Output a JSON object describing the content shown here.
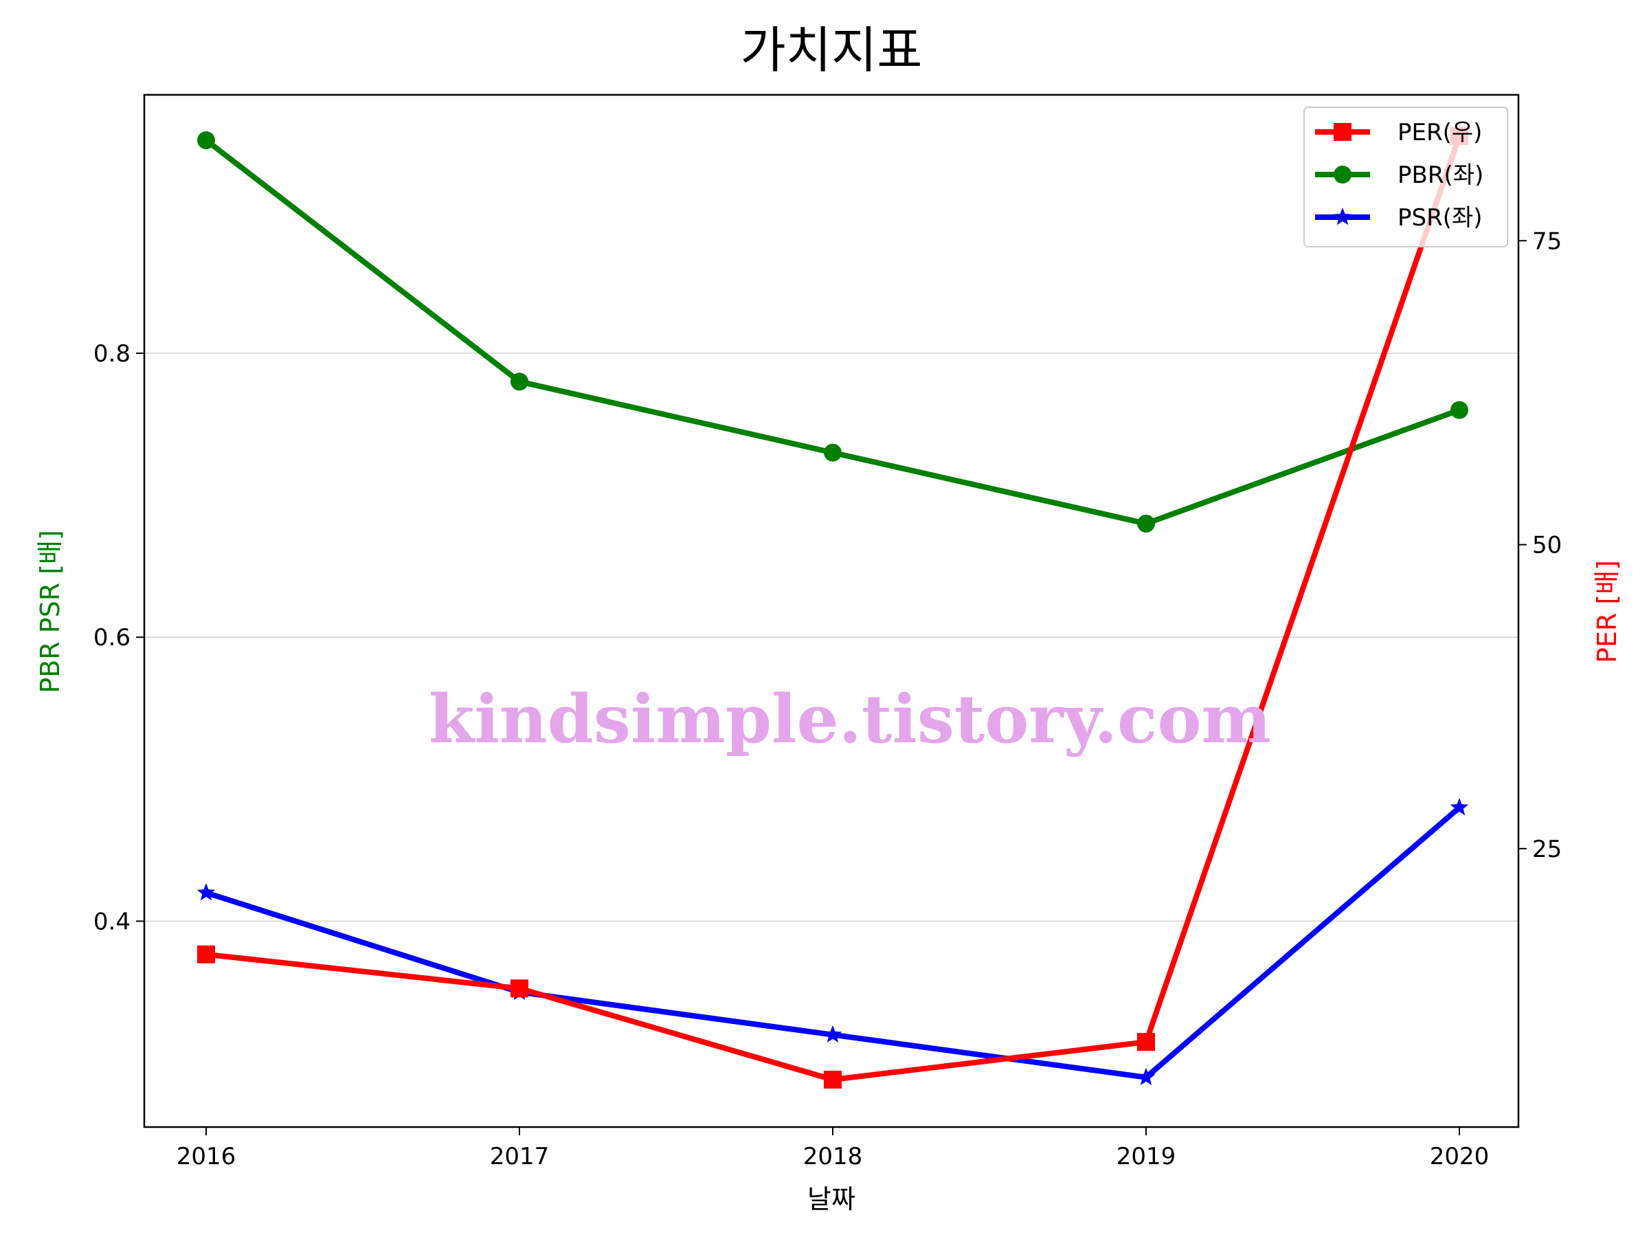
{
  "chart_data": {
    "type": "line",
    "title": "가치지표",
    "xlabel": "날짜",
    "ylabel_left": "PBR PSR [배]",
    "ylabel_right": "PER [배]",
    "categories": [
      "2016",
      "2017",
      "2018",
      "2019",
      "2020"
    ],
    "left_axis": {
      "ylim": [
        0.255,
        0.982
      ],
      "ticks": [
        "0.4",
        "0.6",
        "0.8"
      ],
      "tick_values": [
        0.4,
        0.6,
        0.8
      ]
    },
    "right_axis": {
      "ylim": [
        2.1,
        87.0
      ],
      "ticks": [
        "25",
        "50",
        "75"
      ],
      "tick_values": [
        25,
        50,
        75
      ]
    },
    "grid": "horizontal (left axis)",
    "legend_position": "top-right",
    "series": [
      {
        "name": "PER(우)",
        "axis": "right",
        "color": "#ff0000",
        "marker": "square",
        "values": [
          16.3,
          13.5,
          6.0,
          9.1,
          83.6
        ]
      },
      {
        "name": "PBR(좌)",
        "axis": "left",
        "color": "#008000",
        "marker": "circle",
        "values": [
          0.95,
          0.78,
          0.73,
          0.68,
          0.76
        ]
      },
      {
        "name": "PSR(좌)",
        "axis": "left",
        "color": "#0000ff",
        "marker": "star",
        "values": [
          0.42,
          0.35,
          0.32,
          0.29,
          0.48
        ]
      }
    ],
    "watermark": "kindsimple.tistory.com"
  }
}
